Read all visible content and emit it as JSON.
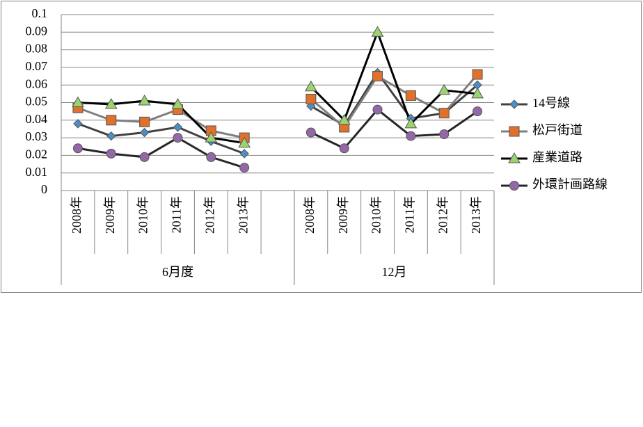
{
  "chart_data": {
    "type": "line",
    "category_groups": [
      {
        "name": "6月度",
        "categories": [
          "2008年",
          "2009年",
          "2010年",
          "2011年",
          "2012年",
          "2013年",
          null
        ]
      },
      {
        "name": "12月",
        "categories": [
          "2008年",
          "2009年",
          "2010年",
          "2011年",
          "2012年",
          "2013年"
        ]
      }
    ],
    "series": [
      {
        "name": "14号線",
        "color": "#404040",
        "marker": "diamond",
        "marker_color": "#4a8fc6",
        "values": [
          0.038,
          0.031,
          0.033,
          0.036,
          0.028,
          0.021,
          null,
          0.048,
          0.037,
          0.067,
          0.041,
          0.044,
          0.06
        ]
      },
      {
        "name": "松戸街道",
        "color": "#7f7f7f",
        "marker": "square",
        "marker_color": "#e0702c",
        "values": [
          0.047,
          0.04,
          0.039,
          0.046,
          0.034,
          0.03,
          null,
          0.052,
          0.036,
          0.065,
          0.054,
          0.044,
          0.066
        ]
      },
      {
        "name": "産業道路",
        "color": "#000000",
        "marker": "triangle",
        "marker_color": "#9bd36e",
        "values": [
          0.05,
          0.049,
          0.051,
          0.049,
          0.03,
          0.027,
          null,
          0.059,
          0.04,
          0.09,
          0.038,
          0.057,
          0.055
        ]
      },
      {
        "name": "外環計画路線",
        "color": "#262626",
        "marker": "circle",
        "marker_color": "#9467a8",
        "values": [
          0.024,
          0.021,
          0.019,
          0.03,
          0.019,
          0.013,
          null,
          0.033,
          0.024,
          0.046,
          0.031,
          0.032,
          0.045
        ]
      }
    ],
    "ylim": [
      0,
      0.1
    ],
    "yticks": [
      0,
      0.01,
      0.02,
      0.03,
      0.04,
      0.05,
      0.06,
      0.07,
      0.08,
      0.09,
      0.1
    ],
    "grid": true,
    "legend": "right"
  }
}
